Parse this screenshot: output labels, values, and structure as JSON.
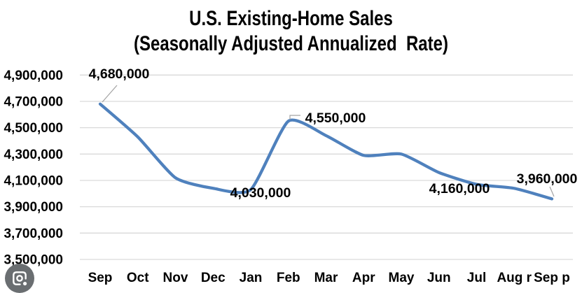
{
  "title": {
    "line1": "U.S. Existing-Home Sales",
    "line2": "(Seasonally Adjusted Annualized  Rate)"
  },
  "chart_data": {
    "type": "line",
    "title": "U.S. Existing-Home Sales (Seasonally Adjusted Annualized Rate)",
    "categories": [
      "Sep",
      "Oct",
      "Nov",
      "Dec",
      "Jan",
      "Feb",
      "Mar",
      "Apr",
      "May",
      "Jun",
      "Jul",
      "Aug r",
      "Sep p"
    ],
    "values": [
      4680000,
      4430000,
      4120000,
      4040000,
      4030000,
      4550000,
      4440000,
      4290000,
      4300000,
      4160000,
      4070000,
      4040000,
      3960000
    ],
    "xlabel": "",
    "ylabel": "",
    "ylim": [
      3500000,
      4900000
    ],
    "ytick_step": 200000,
    "ytick_labels": [
      "4,900,000",
      "4,700,000",
      "4,500,000",
      "4,300,000",
      "4,100,000",
      "3,900,000",
      "3,700,000",
      "3,500,000"
    ],
    "grid": "horizontal",
    "legend": "none",
    "smoothed": true,
    "annotations": [
      {
        "index": 0,
        "text": "4,680,000"
      },
      {
        "index": 4,
        "text": "4,030,000"
      },
      {
        "index": 5,
        "text": "4,550,000"
      },
      {
        "index": 9,
        "text": "4,160,000"
      },
      {
        "index": 12,
        "text": "3,960,000"
      }
    ]
  },
  "colors": {
    "line": "#4f81bd",
    "grid": "#d9d9d9",
    "text": "#000000",
    "leader": "#a3a3a3",
    "lens_background": "#6a6e71",
    "lens_glyph": "#ffffff"
  },
  "overlay": {
    "lens_button_label": "Search with Google Lens"
  }
}
